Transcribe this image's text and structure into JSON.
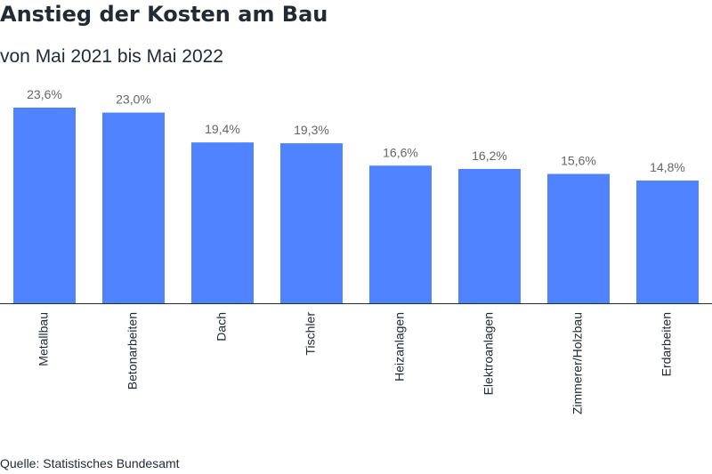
{
  "title": "Anstieg der Kosten am Bau",
  "subtitle": "von Mai 2021 bis Mai 2022",
  "source": "Quelle: Statistisches Bundesamt",
  "colors": {
    "bar": "#5083ff",
    "axis": "#222b33",
    "value_label": "#666666"
  },
  "chart_data": {
    "type": "bar",
    "categories": [
      "Metallbau",
      "Betonarbeiten",
      "Dach",
      "Tischler",
      "Heizanlagen",
      "Elektroanlagen",
      "Zimmerer/Holzbau",
      "Erdarbeiten"
    ],
    "values": [
      23.6,
      23.0,
      19.4,
      19.3,
      16.6,
      16.2,
      15.6,
      14.8
    ],
    "value_labels": [
      "23,6%",
      "23,0%",
      "19,4%",
      "19,3%",
      "16,6%",
      "16,2%",
      "15,6%",
      "14,8%"
    ],
    "ylim": [
      0,
      23.6
    ],
    "grid": false,
    "legend": "none"
  }
}
